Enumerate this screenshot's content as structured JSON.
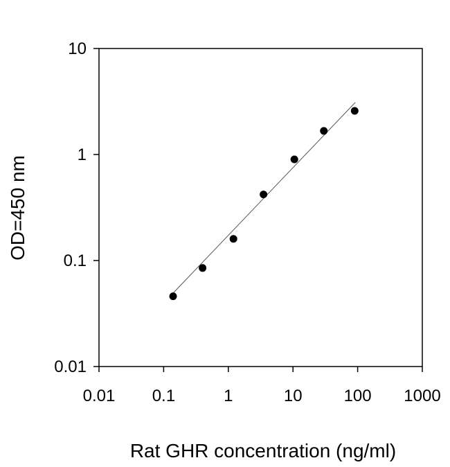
{
  "chart_data": {
    "type": "scatter",
    "x_label": "Rat GHR concentration (ng/ml)",
    "y_label": "OD=450 nm",
    "x": [
      0.14,
      0.4,
      1.2,
      3.5,
      10.5,
      30,
      90
    ],
    "values": [
      0.046,
      0.085,
      0.16,
      0.42,
      0.9,
      1.67,
      2.58
    ],
    "color": "#000000",
    "fit": {
      "x": [
        0.13,
        92
      ],
      "values": [
        0.047,
        3.1
      ],
      "color": "#555555"
    },
    "xscale": "log",
    "yscale": "log",
    "xlim": [
      0.01,
      1000
    ],
    "ylim": [
      0.01,
      10
    ],
    "xticks": [
      0.01,
      0.1,
      1,
      10,
      100,
      1000
    ],
    "yticks": [
      0.01,
      0.1,
      1,
      10
    ]
  }
}
